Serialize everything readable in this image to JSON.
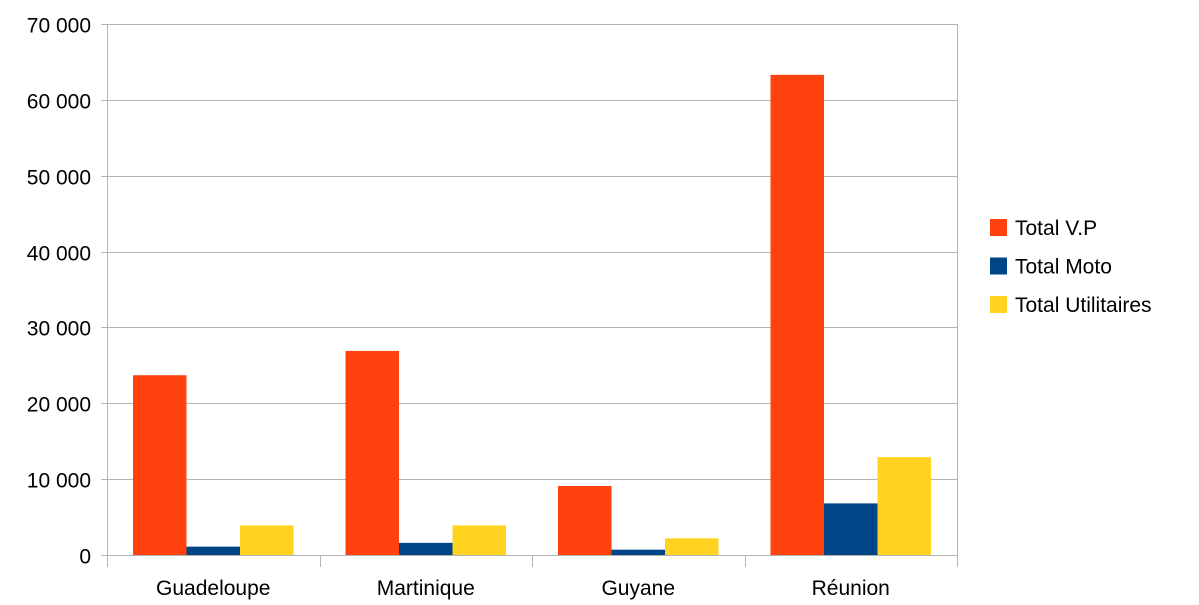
{
  "chart_data": {
    "type": "bar",
    "title": "",
    "xlabel": "",
    "ylabel": "",
    "categories": [
      "Guadeloupe",
      "Martinique",
      "Guyane",
      "Réunion"
    ],
    "series": [
      {
        "name": "Total V.P",
        "color": "#ff420e",
        "values": [
          23700,
          26900,
          9100,
          63300
        ]
      },
      {
        "name": "Total Moto",
        "color": "#004586",
        "values": [
          1100,
          1600,
          700,
          6800
        ]
      },
      {
        "name": "Total Utilitaires",
        "color": "#ffd320",
        "values": [
          3900,
          3900,
          2200,
          12900
        ]
      }
    ],
    "ylim": [
      0,
      70000
    ],
    "yticks": [
      0,
      10000,
      20000,
      30000,
      40000,
      50000,
      60000,
      70000
    ],
    "ytick_labels": [
      "0",
      "10 000",
      "20 000",
      "30 000",
      "40 000",
      "50 000",
      "60 000",
      "70 000"
    ],
    "grid": true,
    "legend_position": "right"
  }
}
